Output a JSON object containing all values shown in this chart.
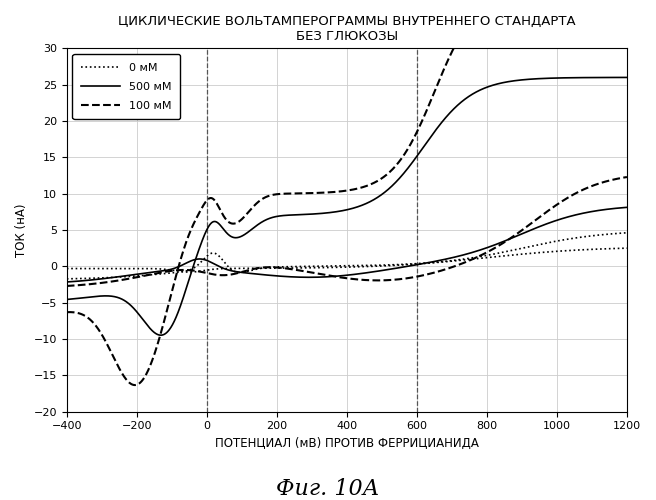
{
  "title": "ЦИКЛИЧЕСКИЕ ВОЛЬТАМПЕРОГРАММЫ ВНУТРЕННЕГО СТАНДАРТА\nБЕЗ ГЛЮКОЗЫ",
  "xlabel": "ПОТЕНЦИАЛ (мВ) ПРОТИВ ФЕРРИЦИАНИДА",
  "ylabel": "ТОК (нА)",
  "caption": "Фиг. 10А",
  "xlim": [
    -400,
    1200
  ],
  "ylim": [
    -20,
    30
  ],
  "xticks": [
    -400,
    -200,
    0,
    200,
    400,
    600,
    800,
    1000,
    1200
  ],
  "yticks": [
    -20,
    -15,
    -10,
    -5,
    0,
    5,
    10,
    15,
    20,
    25,
    30
  ],
  "vlines": [
    0,
    600
  ],
  "legend_labels": [
    "0 мМ",
    "500 мМ",
    "100 мМ"
  ],
  "legend_styles": [
    "dotted",
    "solid",
    "dashed"
  ],
  "background_color": "#ffffff",
  "line_color": "#000000",
  "title_fontsize": 9.5,
  "axis_label_fontsize": 8.5,
  "tick_fontsize": 8,
  "caption_fontsize": 16
}
